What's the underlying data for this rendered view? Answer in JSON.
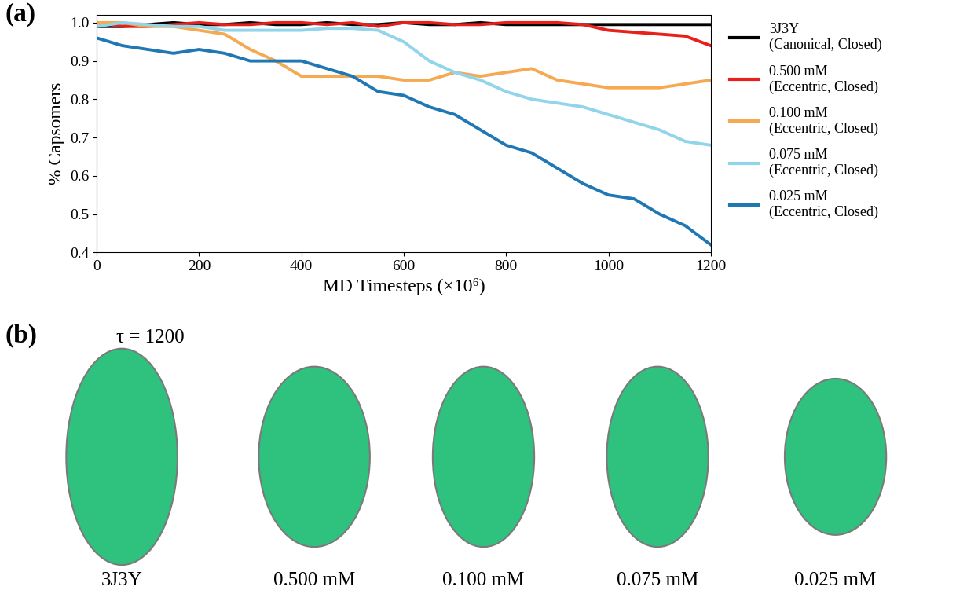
{
  "chart_data": {
    "type": "line",
    "panel_label": "(a)",
    "x_label": "MD Timesteps (×10⁶)",
    "y_label": "% Capsomers",
    "x": [
      0,
      50,
      100,
      150,
      200,
      250,
      300,
      350,
      400,
      450,
      500,
      550,
      600,
      650,
      700,
      750,
      800,
      850,
      900,
      950,
      1000,
      1050,
      1100,
      1150,
      1200
    ],
    "xlim": [
      0,
      1200
    ],
    "xticks": [
      0,
      200,
      400,
      600,
      800,
      1000,
      1200
    ],
    "ylim": [
      0.4,
      1.02
    ],
    "yticks": [
      0.4,
      0.5,
      0.6,
      0.7,
      0.8,
      0.9,
      1.0
    ],
    "legend": "upper left",
    "series": [
      {
        "name": "3J3Y\n(Canonical, Closed)",
        "color": "#000000",
        "values": [
          0.99,
          0.99,
          0.995,
          1.0,
          0.995,
          0.995,
          1.0,
          0.995,
          0.995,
          1.0,
          0.995,
          0.995,
          1.0,
          0.995,
          0.995,
          1.0,
          0.995,
          0.995,
          0.995,
          0.995,
          0.995,
          0.995,
          0.995,
          0.995,
          0.995
        ]
      },
      {
        "name": "0.500 mM\n(Eccentric, Closed)",
        "color": "#e8201c",
        "values": [
          1.0,
          0.99,
          0.99,
          0.995,
          1.0,
          0.995,
          0.995,
          1.0,
          1.0,
          0.995,
          1.0,
          0.99,
          1.0,
          1.0,
          0.995,
          0.995,
          1.0,
          1.0,
          1.0,
          0.995,
          0.98,
          0.975,
          0.97,
          0.965,
          0.94
        ]
      },
      {
        "name": "0.100 mM\n(Eccentric, Closed)",
        "color": "#f5a951",
        "values": [
          1.0,
          1.0,
          0.99,
          0.99,
          0.98,
          0.97,
          0.93,
          0.9,
          0.86,
          0.86,
          0.86,
          0.86,
          0.85,
          0.85,
          0.87,
          0.86,
          0.87,
          0.88,
          0.85,
          0.84,
          0.83,
          0.83,
          0.83,
          0.84,
          0.85
        ]
      },
      {
        "name": "0.075 mM\n(Eccentric, Closed)",
        "color": "#92d4ea",
        "values": [
          0.99,
          1.0,
          0.995,
          0.99,
          0.99,
          0.98,
          0.98,
          0.98,
          0.98,
          0.985,
          0.985,
          0.98,
          0.95,
          0.9,
          0.87,
          0.85,
          0.82,
          0.8,
          0.79,
          0.78,
          0.76,
          0.74,
          0.72,
          0.69,
          0.68
        ]
      },
      {
        "name": "0.025 mM\n(Eccentric, Closed)",
        "color": "#1f78b4",
        "values": [
          0.96,
          0.94,
          0.93,
          0.92,
          0.93,
          0.92,
          0.9,
          0.9,
          0.9,
          0.88,
          0.86,
          0.82,
          0.81,
          0.78,
          0.76,
          0.72,
          0.68,
          0.66,
          0.62,
          0.58,
          0.55,
          0.54,
          0.5,
          0.47,
          0.42
        ]
      }
    ]
  },
  "panel_b": {
    "panel_label": "(b)",
    "title": "τ = 1200",
    "labels": [
      "3J3Y",
      "0.500 mM",
      "0.100 mM",
      "0.075 mM",
      "0.025 mM"
    ]
  }
}
